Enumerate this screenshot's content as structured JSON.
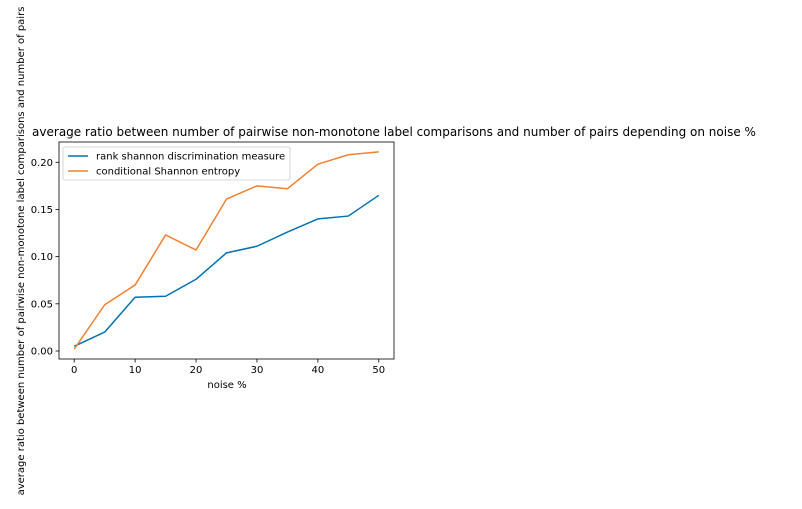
{
  "chart_data": {
    "type": "line",
    "title": "average ratio between number of pairwise non-monotone label comparisons and number of pairs depending on noise %",
    "xlabel": "noise %",
    "ylabel": "average ratio between number of pairwise non-monotone label comparisons and number of pairs",
    "x": [
      0,
      5,
      10,
      15,
      20,
      25,
      30,
      35,
      40,
      45,
      50
    ],
    "x_ticks": [
      0,
      10,
      20,
      30,
      40,
      50
    ],
    "y_ticks": [
      0.0,
      0.05,
      0.1,
      0.15,
      0.2
    ],
    "x_tick_labels": [
      "0",
      "10",
      "20",
      "30",
      "40",
      "50"
    ],
    "y_tick_labels": [
      "0.00",
      "0.05",
      "0.10",
      "0.15",
      "0.20"
    ],
    "xlim": [
      -2.5,
      52.5
    ],
    "ylim": [
      -0.0085,
      0.2215
    ],
    "grid": false,
    "legend_position": "upper-left",
    "series": [
      {
        "name": "rank shannon discrimination measure",
        "color": "#0072b2",
        "values": [
          0.005,
          0.02,
          0.057,
          0.058,
          0.076,
          0.104,
          0.111,
          0.126,
          0.14,
          0.143,
          0.165
        ]
      },
      {
        "name": "conditional Shannon entropy",
        "color": "#f28132",
        "values": [
          0.002,
          0.049,
          0.07,
          0.123,
          0.107,
          0.161,
          0.175,
          0.172,
          0.198,
          0.208,
          0.211
        ]
      }
    ]
  }
}
